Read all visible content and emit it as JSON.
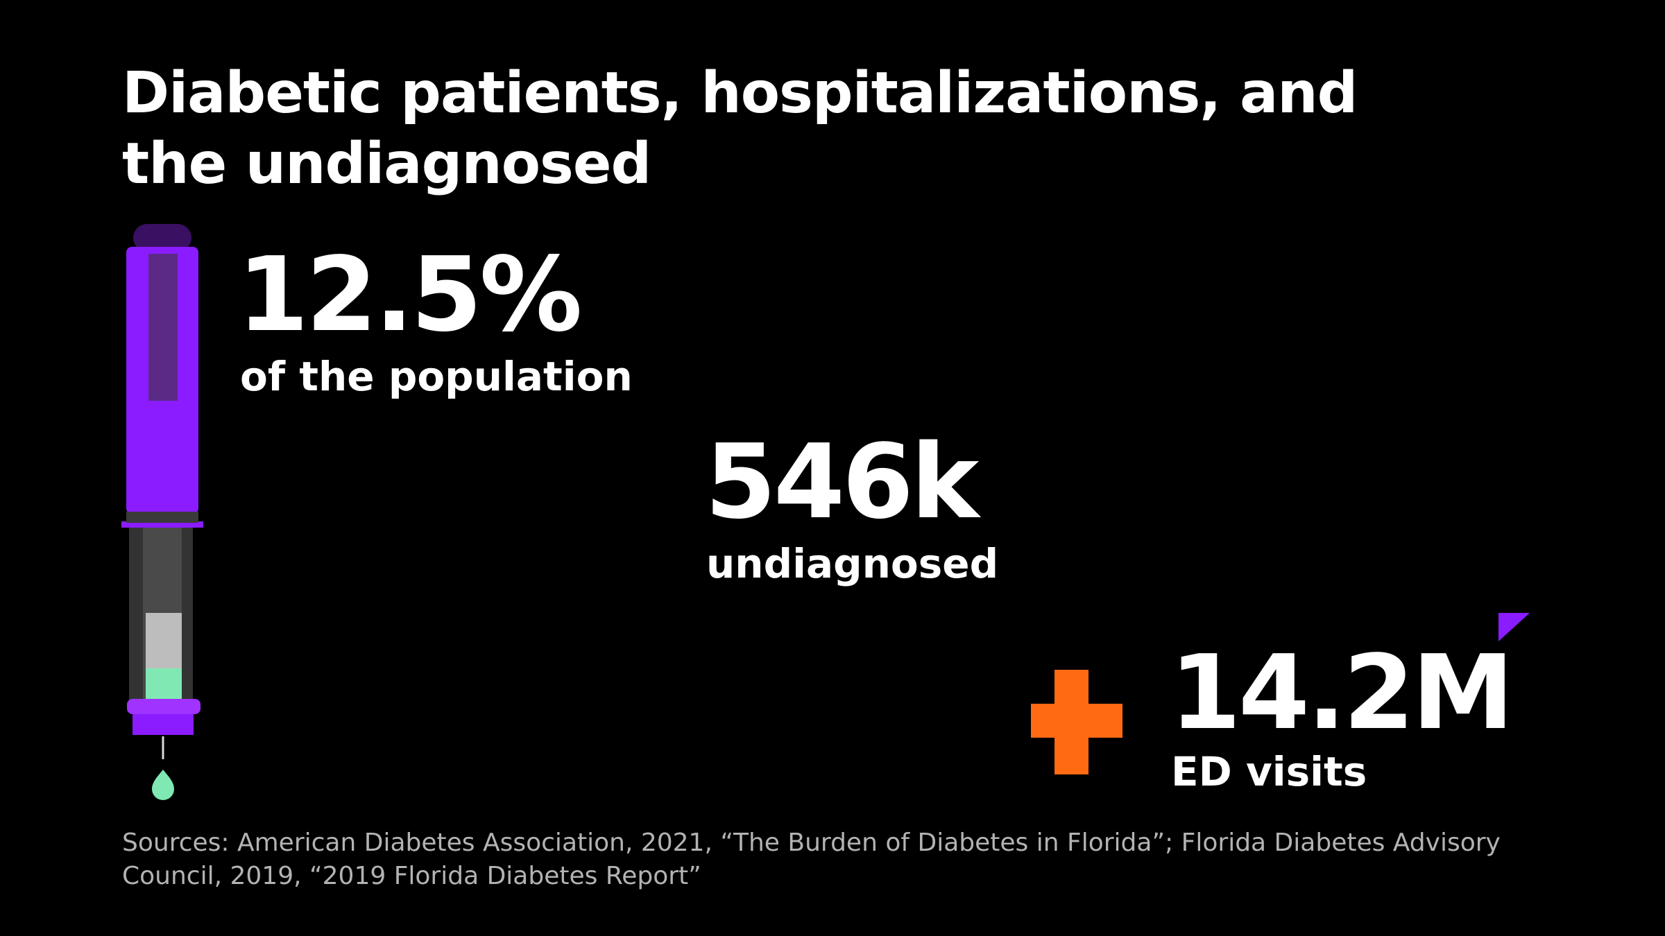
{
  "title": "Diabetic patients, hospitalizations, and the undiagnosed",
  "chart_data": {
    "type": "infographic",
    "title": "Diabetic patients, hospitalizations, and the undiagnosed",
    "stats": [
      {
        "value": "12.5%",
        "label": "of the population"
      },
      {
        "value": "546k",
        "label": "undiagnosed"
      },
      {
        "value": "14.2M",
        "label": "ED visits"
      }
    ]
  },
  "sources": "Sources: American Diabetes Association, 2021, “The Burden of Diabetes in Florida”; Florida Diabetes Advisory Council, 2019, “2019 Florida Diabetes Report”",
  "icons": {
    "pen": "insulin-pen-icon",
    "cross": "medical-cross-icon",
    "drop": "droplet-icon"
  },
  "colors": {
    "background": "#000000",
    "text": "#ffffff",
    "purple": "#8b1cff",
    "purple_light": "#a033ff",
    "orange": "#ff6a13",
    "mint": "#7fe8b3",
    "muted": "#b3b3b3"
  }
}
